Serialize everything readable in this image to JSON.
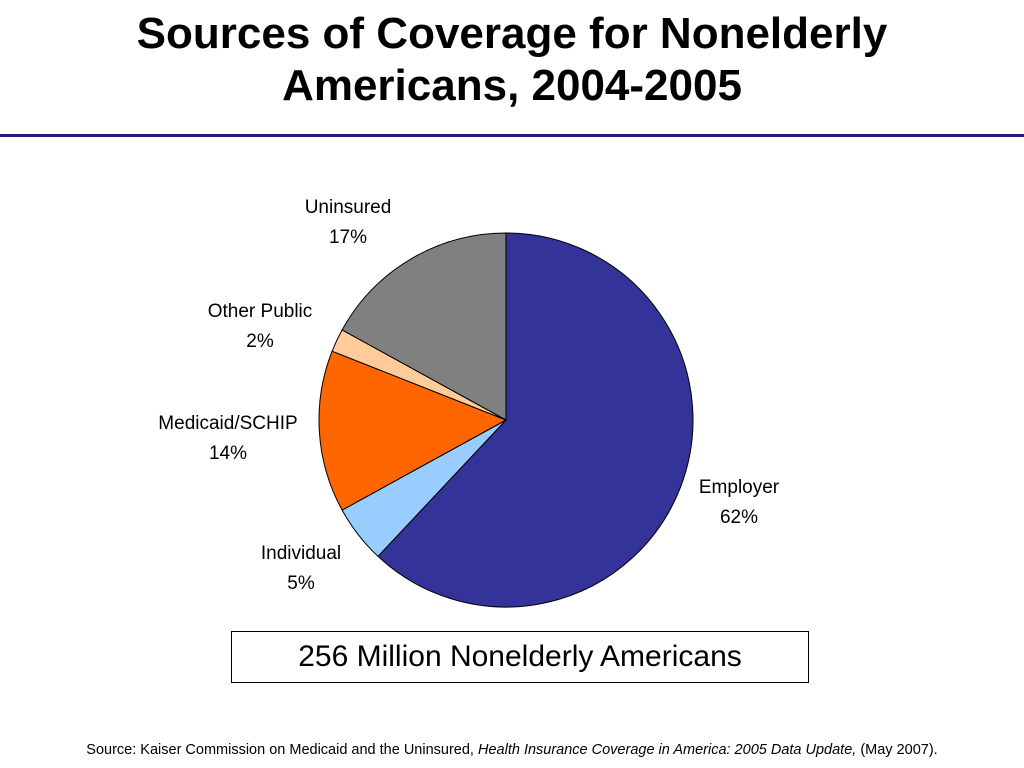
{
  "title_line1": "Sources of Coverage for Nonelderly",
  "title_line2": "Americans, 2004-2005",
  "chart_data": {
    "type": "pie",
    "slices": [
      {
        "label": "Employer",
        "value": 62,
        "value_label": "62%",
        "color": "#343399"
      },
      {
        "label": "Individual",
        "value": 5,
        "value_label": "5%",
        "color": "#99CCFF"
      },
      {
        "label": "Medicaid/SCHIP",
        "value": 14,
        "value_label": "14%",
        "color": "#FF6600"
      },
      {
        "label": "Other Public",
        "value": 2,
        "value_label": "2%",
        "color": "#FFCC99"
      },
      {
        "label": "Uninsured",
        "value": 17,
        "value_label": "17%",
        "color": "#808080"
      }
    ]
  },
  "total_box": "256 Million Nonelderly Americans",
  "source": {
    "prefix": "Source: Kaiser Commission on Medicaid and the Uninsured, ",
    "italic": "Health Insurance Coverage in America: 2005 Data Update,",
    "suffix": " (May 2007)."
  },
  "colors": {
    "title_rule": "#1F1F7A"
  }
}
